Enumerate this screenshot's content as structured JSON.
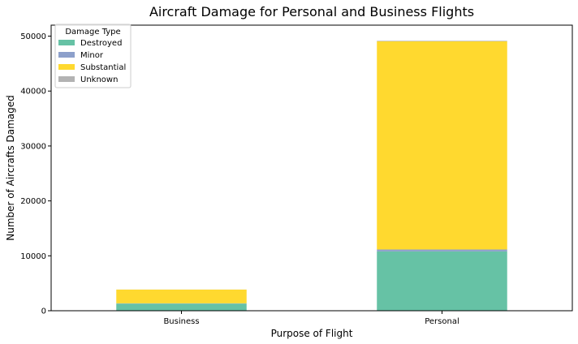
{
  "chart_data": {
    "type": "bar",
    "stacked": true,
    "title": "Aircraft Damage for Personal and Business Flights",
    "xlabel": "Purpose of Flight",
    "ylabel": "Number of Aircrafts Damaged",
    "categories": [
      "Business",
      "Personal"
    ],
    "ylim": [
      0,
      52000
    ],
    "yticks": [
      0,
      10000,
      20000,
      30000,
      40000,
      50000
    ],
    "series": [
      {
        "name": "Destroyed",
        "color": "#66c2a5",
        "values": [
          1300,
          10800
        ]
      },
      {
        "name": "Minor",
        "color": "#8da0cb",
        "values": [
          50,
          350
        ]
      },
      {
        "name": "Substantial",
        "color": "#ffd92f",
        "values": [
          2500,
          37900
        ]
      },
      {
        "name": "Unknown",
        "color": "#b3b3b3",
        "values": [
          10,
          100
        ]
      }
    ],
    "legend": {
      "title": "Damage Type",
      "position": "top-left"
    },
    "grid": false
  }
}
